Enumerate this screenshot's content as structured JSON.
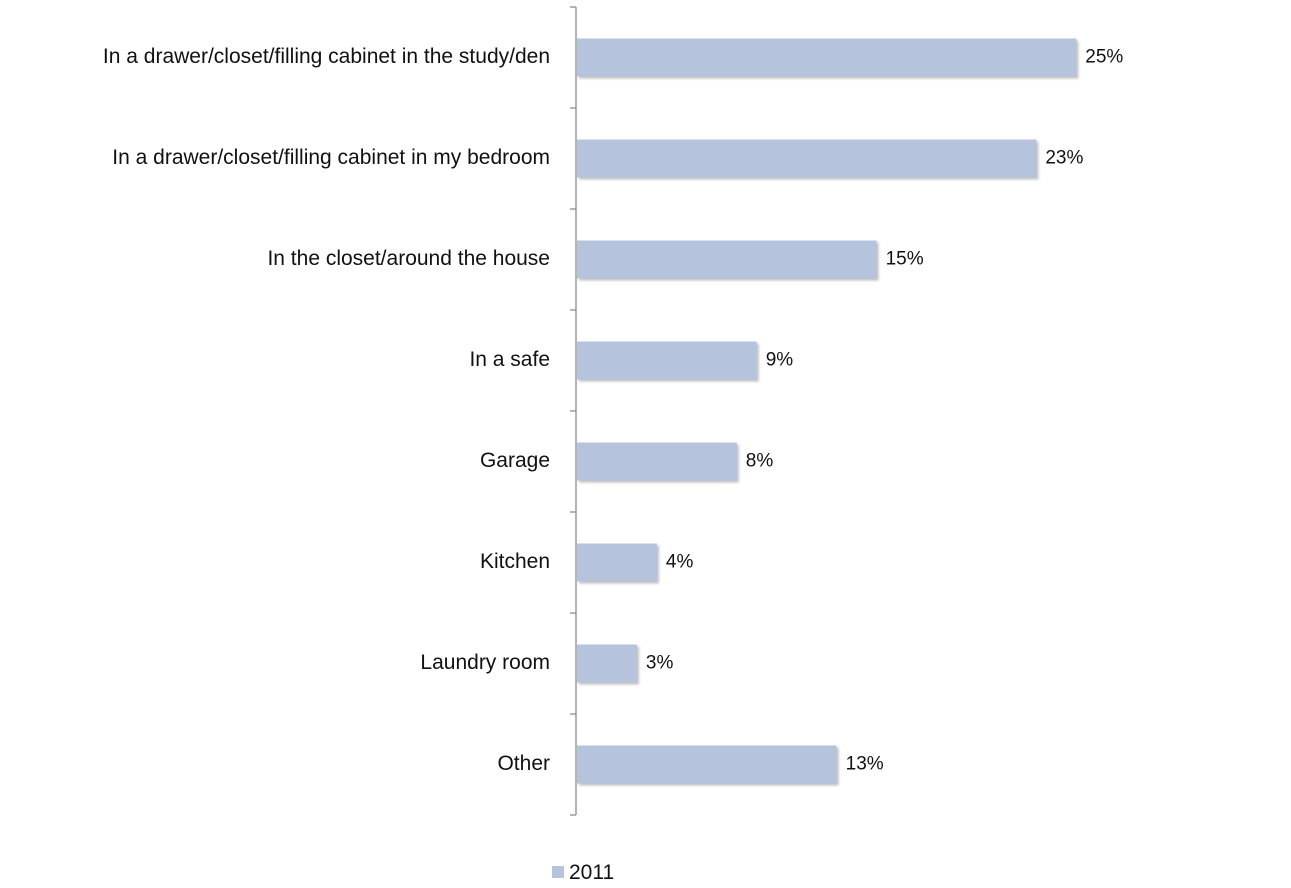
{
  "chart_data": {
    "type": "bar",
    "orientation": "horizontal",
    "categories": [
      "In a drawer/closet/filling cabinet in the study/den",
      "In a drawer/closet/filling cabinet in my bedroom",
      "In the closet/around the house",
      "In a safe",
      "Garage",
      "Kitchen",
      "Laundry room",
      "Other"
    ],
    "series": [
      {
        "name": "2011",
        "color": "#b5c3dd",
        "values": [
          25,
          23,
          15,
          9,
          8,
          4,
          3,
          13
        ],
        "labels": [
          "25%",
          "23%",
          "15%",
          "9%",
          "8%",
          "4%",
          "3%",
          "13%"
        ]
      }
    ],
    "xlim": [
      0,
      35
    ],
    "grid": false,
    "legend": "bottom"
  }
}
